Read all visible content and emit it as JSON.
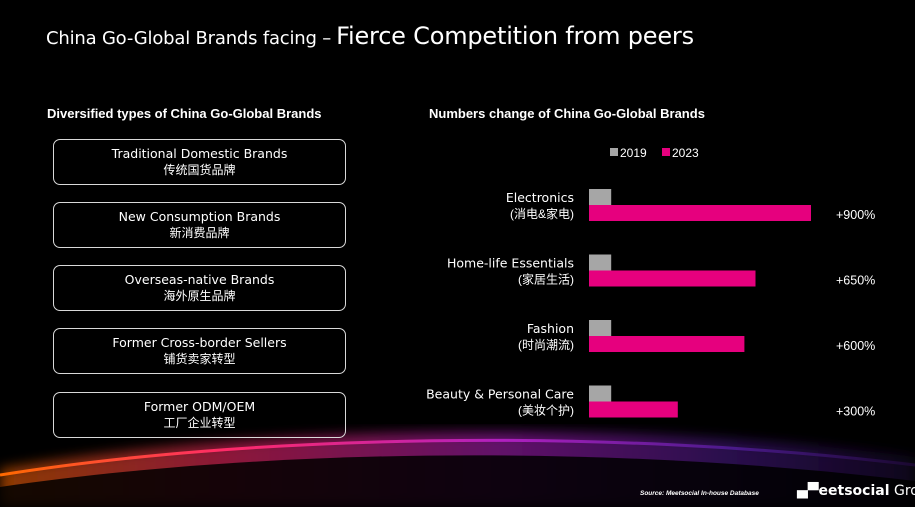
{
  "title": {
    "part1": "China Go-Global Brands facing –",
    "part2": "Fierce Competition from peers"
  },
  "left_panel": {
    "heading": "Diversified types of China Go-Global Brands",
    "brands": [
      {
        "en": "Traditional Domestic Brands",
        "zh": "传统国货品牌"
      },
      {
        "en": "New Consumption Brands",
        "zh": "新消费品牌"
      },
      {
        "en": "Overseas-native Brands",
        "zh": "海外原生品牌"
      },
      {
        "en": "Former Cross-border  Sellers",
        "zh": "铺货卖家转型"
      },
      {
        "en": "Former ODM/OEM",
        "zh": "工厂企业转型"
      }
    ]
  },
  "right_panel": {
    "heading": "Numbers  change of China Go-Global Brands"
  },
  "chart_data": {
    "type": "bar",
    "orientation": "horizontal",
    "categories": [
      {
        "en": "Electronics",
        "zh": "(消电&家电)"
      },
      {
        "en": "Home-life Essentials",
        "zh": "(家居生活)"
      },
      {
        "en": "Fashion",
        "zh": "(时尚潮流)"
      },
      {
        "en": "Beauty & Personal Care",
        "zh": "(美妆个护)"
      }
    ],
    "series": [
      {
        "name": "2019",
        "color": "#a6a6a6",
        "values": [
          1,
          1,
          1,
          1
        ]
      },
      {
        "name": "2023",
        "color": "#e6007e",
        "values": [
          10,
          7.5,
          7,
          4
        ]
      }
    ],
    "annotations": [
      "+900%",
      "+650%",
      "+600%",
      "+300%"
    ],
    "legend_position": "top",
    "xlim": [
      0,
      10
    ],
    "grid": false
  },
  "footer": {
    "source": "Source: Meetsocial In-house Database",
    "logo_mark": "▄▀eetsocial",
    "logo_text": "Group"
  }
}
